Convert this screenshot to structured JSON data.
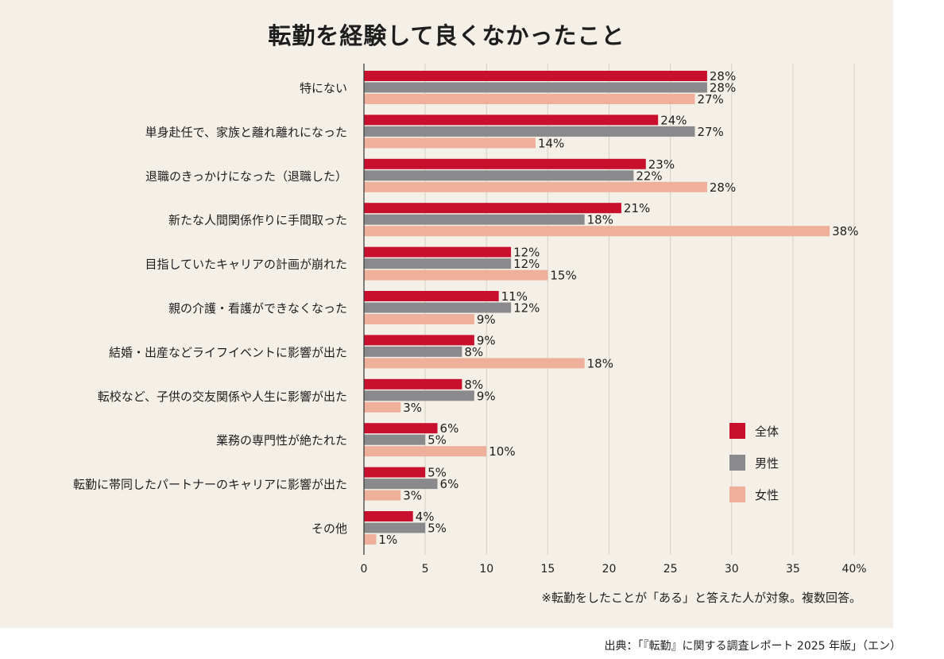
{
  "chart_data": {
    "type": "bar",
    "orientation": "horizontal",
    "title": "転勤を経験して良くなかったこと",
    "categories": [
      "特にない",
      "単身赴任で、家族と離れ離れになった",
      "退職のきっかけになった（退職した）",
      "新たな人間関係作りに手間取った",
      "目指していたキャリアの計画が崩れた",
      "親の介護・看護ができなくなった",
      "結婚・出産などライフイベントに影響が出た",
      "転校など、子供の交友関係や人生に影響が出た",
      "業務の専門性が絶たれた",
      "転勤に帯同したパートナーのキャリアに影響が出た",
      "その他"
    ],
    "series": [
      {
        "name": "全体",
        "color": "#c8102e",
        "values": [
          28,
          24,
          23,
          21,
          12,
          11,
          9,
          8,
          6,
          5,
          4
        ]
      },
      {
        "name": "男性",
        "color": "#8a8a8d",
        "values": [
          28,
          27,
          22,
          18,
          12,
          12,
          8,
          9,
          5,
          6,
          5
        ]
      },
      {
        "name": "女性",
        "color": "#eeb09a",
        "values": [
          27,
          14,
          28,
          38,
          15,
          9,
          18,
          3,
          10,
          3,
          1
        ]
      }
    ],
    "xlim": [
      0,
      40
    ],
    "xticks": [
      0,
      5,
      10,
      15,
      20,
      25,
      30,
      35,
      40
    ],
    "xtick_labels": [
      "0",
      "5",
      "10",
      "15",
      "20",
      "25",
      "30",
      "35",
      "40%"
    ],
    "value_suffix": "%",
    "grid": true,
    "legend_position": "lower-right"
  },
  "note": "※転勤をしたことが「ある」と答えた人が対象。複数回答。",
  "source": "出典：「『転勤』に関する調査レポート 2025 年版」（エン）",
  "colors": {
    "background": "#f4f0e8",
    "grid": "#d6cfc3",
    "axis": "#333333",
    "text": "#1e1e1e"
  }
}
